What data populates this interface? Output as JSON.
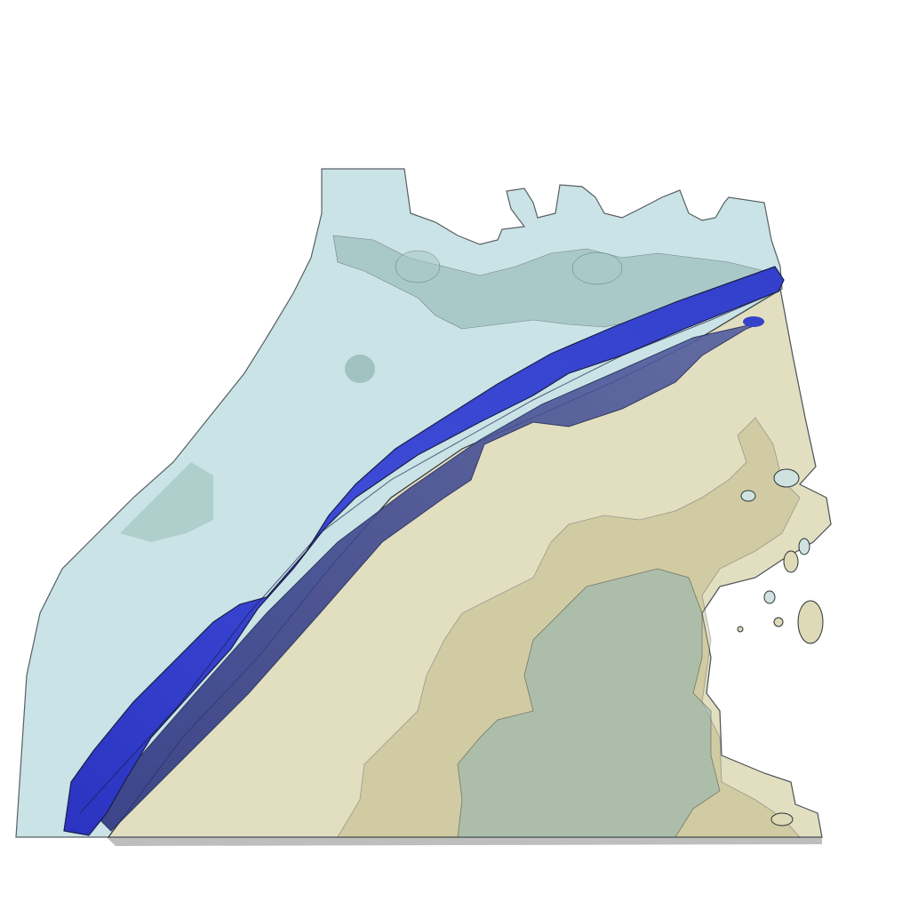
{
  "scene": {
    "kind": "3D volume isosurface render",
    "background_color": "#ffffff",
    "layers": [
      {
        "name": "upper-translucent-volume",
        "color": "#bcdcdf",
        "opacity": 0.72
      },
      {
        "name": "lower-translucent-volume",
        "color": "#ded9b6",
        "opacity": 0.82
      },
      {
        "name": "inner-olive-plume",
        "color": "#b8b07a",
        "opacity": 0.45
      },
      {
        "name": "inner-teal-plume",
        "color": "#8fb5b0",
        "opacity": 0.5
      },
      {
        "name": "dipping-blue-slab",
        "color": "#3443c9",
        "opacity": 1.0
      },
      {
        "name": "slab-underside",
        "color": "#45508c",
        "opacity": 0.95
      }
    ],
    "outline_color": "#2b3338"
  }
}
